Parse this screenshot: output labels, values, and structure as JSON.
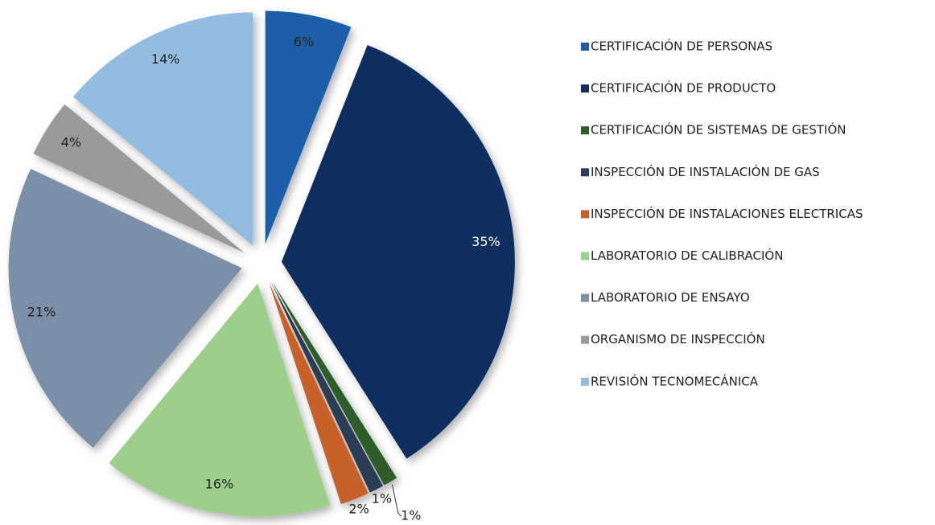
{
  "chart_data": {
    "type": "pie",
    "categories": [
      "CERTIFICACIÓN DE PERSONAS",
      "CERTIFICACIÓN DE PRODUCTO",
      "CERTIFICACIÓN DE SISTEMAS DE GESTIÓN",
      "INSPECCIÓN DE INSTALACIÓN DE GAS",
      "INSPECCIÓN DE INSTALACIONES ELECTRICAS",
      "LABORATORIO DE CALIBRACIÓN",
      "LABORATORIO DE ENSAYO",
      "ORGANISMO DE INSPECCIÓN",
      "REVISIÓN TECNOMECÁNICA"
    ],
    "values": [
      6,
      35,
      1,
      1,
      2,
      16,
      21,
      4,
      14
    ],
    "value_labels": [
      "6%",
      "35%",
      "1%",
      "1%",
      "2%",
      "16%",
      "21%",
      "4%",
      "14%"
    ],
    "colors": [
      "#1f5fa8",
      "#0e2f5e",
      "#2e5d2a",
      "#2c3e55",
      "#c8612a",
      "#9ccf8a",
      "#7b8fa8",
      "#9a9a9a",
      "#93bde0"
    ],
    "legend": "right"
  }
}
